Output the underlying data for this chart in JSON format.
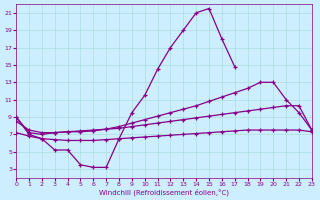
{
  "background_color": "#cceeff",
  "grid_color": "#aadddd",
  "line_color": "#880088",
  "xlabel": "Windchill (Refroidissement éolien,°C)",
  "x_values": [
    0,
    1,
    2,
    3,
    4,
    5,
    6,
    7,
    8,
    9,
    10,
    11,
    12,
    13,
    14,
    15,
    16,
    17,
    18,
    19,
    20,
    21,
    22,
    23
  ],
  "line1_x": [
    0,
    1,
    2,
    3,
    4,
    5,
    6,
    7,
    8,
    9,
    10,
    11,
    12,
    13,
    14,
    15,
    16,
    17
  ],
  "line1_y": [
    9,
    7,
    6.5,
    5.2,
    5.2,
    3.5,
    3.2,
    3.2,
    6.5,
    9.5,
    11.5,
    14.5,
    17,
    19,
    21,
    21.5,
    18,
    14.8
  ],
  "line2_x": [
    0,
    1,
    2,
    3,
    4,
    5,
    6,
    7,
    8,
    9,
    10,
    11,
    12,
    13,
    14,
    15,
    16,
    17,
    18,
    19,
    20,
    21,
    22,
    23
  ],
  "line2_y": [
    9.0,
    7.2,
    7.0,
    7.2,
    7.3,
    7.3,
    7.4,
    7.6,
    7.9,
    8.3,
    8.7,
    9.1,
    9.5,
    9.9,
    10.3,
    10.8,
    11.3,
    11.8,
    12.3,
    13.0,
    13.0,
    11.0,
    9.5,
    7.5
  ],
  "line3_x": [
    0,
    1,
    2,
    3,
    4,
    5,
    6,
    7,
    8,
    9,
    10,
    11,
    12,
    13,
    14,
    15,
    16,
    17,
    18,
    19,
    20,
    21,
    22,
    23
  ],
  "line3_y": [
    7.2,
    6.8,
    6.5,
    6.4,
    6.3,
    6.3,
    6.3,
    6.4,
    6.5,
    6.6,
    6.7,
    6.8,
    6.9,
    7.0,
    7.1,
    7.2,
    7.3,
    7.4,
    7.5,
    7.5,
    7.5,
    7.5,
    7.5,
    7.3
  ],
  "line4_x": [
    0,
    1,
    2,
    3,
    4,
    5,
    6,
    7,
    8,
    9,
    10,
    11,
    12,
    13,
    14,
    15,
    16,
    17,
    18,
    19,
    20,
    21,
    22,
    23
  ],
  "line4_y": [
    8.5,
    7.5,
    7.2,
    7.2,
    7.3,
    7.4,
    7.5,
    7.6,
    7.7,
    7.9,
    8.1,
    8.3,
    8.5,
    8.7,
    8.9,
    9.1,
    9.3,
    9.5,
    9.7,
    9.9,
    10.1,
    10.3,
    10.3,
    7.5
  ],
  "ylim": [
    2,
    22
  ],
  "xlim": [
    0,
    23
  ],
  "yticks": [
    3,
    5,
    7,
    9,
    11,
    13,
    15,
    17,
    19,
    21
  ],
  "xticks": [
    0,
    1,
    2,
    3,
    4,
    5,
    6,
    7,
    8,
    9,
    10,
    11,
    12,
    13,
    14,
    15,
    16,
    17,
    18,
    19,
    20,
    21,
    22,
    23
  ]
}
